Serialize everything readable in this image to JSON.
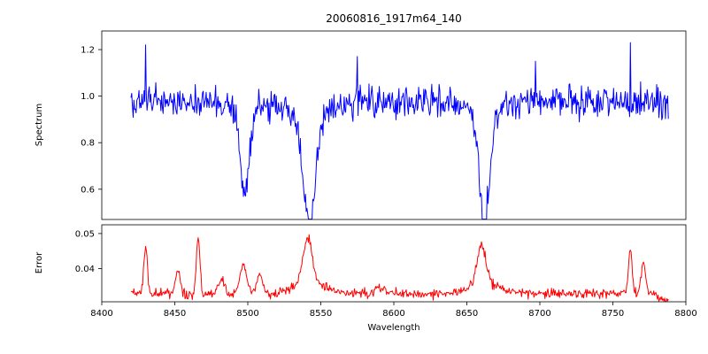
{
  "chart_data": {
    "type": "line",
    "title": "20060816_1917m64_140",
    "xlabel": "Wavelength",
    "xlim": [
      8400,
      8800
    ],
    "xticks": [
      8400,
      8450,
      8500,
      8550,
      8600,
      8650,
      8700,
      8750,
      8800
    ],
    "x_start": 8420,
    "x_end": 8788,
    "x_step": 0.5,
    "seed": 20060816,
    "grid": false,
    "legend": "none",
    "panels": [
      {
        "name": "spectrum",
        "ylabel": "Spectrum",
        "ylim": [
          0.47,
          1.28
        ],
        "yticks": [
          0.6,
          0.8,
          1.0,
          1.2
        ],
        "ytick_labels": [
          "0.6",
          "0.8",
          "1.0",
          "1.2"
        ],
        "line_color": "#0000ff",
        "baseline": 0.975,
        "noise_amplitude": 0.055,
        "absorption_lines": [
          {
            "center": 8498.0,
            "depth": 0.36,
            "width": 3.0
          },
          {
            "center": 8542.1,
            "depth": 0.49,
            "width": 4.0
          },
          {
            "center": 8662.1,
            "depth": 0.47,
            "width": 3.5
          }
        ],
        "spikes": [
          {
            "x": 8430,
            "value": 1.22
          },
          {
            "x": 8575,
            "value": 1.17
          },
          {
            "x": 8697,
            "value": 1.15
          },
          {
            "x": 8762,
            "value": 1.23
          }
        ]
      },
      {
        "name": "error",
        "ylabel": "Error",
        "ylim": [
          0.0305,
          0.0525
        ],
        "yticks": [
          0.04,
          0.05
        ],
        "ytick_labels": [
          "0.04",
          "0.05"
        ],
        "line_color": "#ff0000",
        "baseline": 0.0328,
        "noise_amplitude": 0.0011,
        "peaks": [
          {
            "center": 8430,
            "height": 0.014,
            "width": 1.2
          },
          {
            "center": 8452,
            "height": 0.007,
            "width": 1.5
          },
          {
            "center": 8466,
            "height": 0.016,
            "width": 1.2
          },
          {
            "center": 8482,
            "height": 0.004,
            "width": 2.0
          },
          {
            "center": 8497,
            "height": 0.008,
            "width": 2.5
          },
          {
            "center": 8508,
            "height": 0.005,
            "width": 2.0
          },
          {
            "center": 8541,
            "height": 0.012,
            "width": 3.0
          },
          {
            "center": 8542,
            "height": 0.004,
            "width": 10.0
          },
          {
            "center": 8590,
            "height": 0.002,
            "width": 3.0
          },
          {
            "center": 8660,
            "height": 0.011,
            "width": 3.0
          },
          {
            "center": 8662,
            "height": 0.003,
            "width": 10.0
          },
          {
            "center": 8762,
            "height": 0.013,
            "width": 1.2
          },
          {
            "center": 8771,
            "height": 0.009,
            "width": 1.5
          },
          {
            "center": 8786,
            "height": -0.002,
            "width": 3.0
          }
        ]
      }
    ]
  }
}
